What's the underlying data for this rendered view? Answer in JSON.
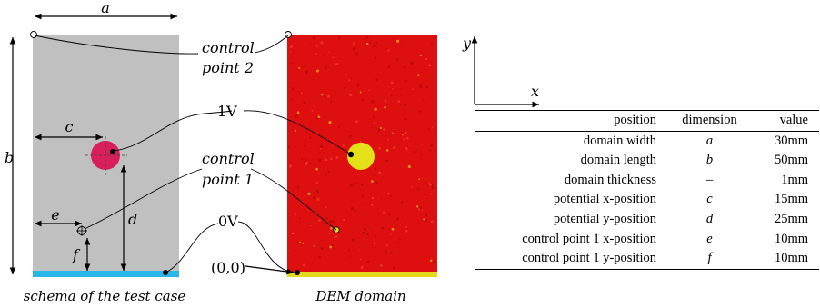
{
  "schema": {
    "label_a": "a",
    "label_b": "b",
    "label_c": "c",
    "label_d": "d",
    "label_e": "e",
    "label_f": "f",
    "caption": "schema of the test case",
    "domain_color": "#c0c0c0",
    "potential_color": "#d81e5b",
    "bottom_color": "#29b6e8"
  },
  "annotations": {
    "control_point_2_line1": "control",
    "control_point_2_line2": "point 2",
    "control_point_1_line1": "control",
    "control_point_1_line2": "point 1",
    "potential_1v": "1V",
    "potential_0v": "0V",
    "origin": "(0,0)"
  },
  "dem": {
    "caption": "DEM domain",
    "domain_color": "#dd0f0f",
    "particle_color": "#e4e01a",
    "bottom_color": "#e3d91d"
  },
  "axes": {
    "x_label": "x",
    "y_label": "y"
  },
  "table": {
    "headers": [
      "position",
      "dimension",
      "value"
    ],
    "rows": [
      {
        "position": "domain width",
        "dimension": "a",
        "value": "30mm"
      },
      {
        "position": "domain length",
        "dimension": "b",
        "value": "50mm"
      },
      {
        "position": "domain thickness",
        "dimension": "–",
        "value": "1mm"
      },
      {
        "position": "potential x-position",
        "dimension": "c",
        "value": "15mm"
      },
      {
        "position": "potential y-position",
        "dimension": "d",
        "value": "25mm"
      },
      {
        "position": "control point 1 x-position",
        "dimension": "e",
        "value": "10mm"
      },
      {
        "position": "control point 1 y-position",
        "dimension": "f",
        "value": "10mm"
      }
    ]
  }
}
